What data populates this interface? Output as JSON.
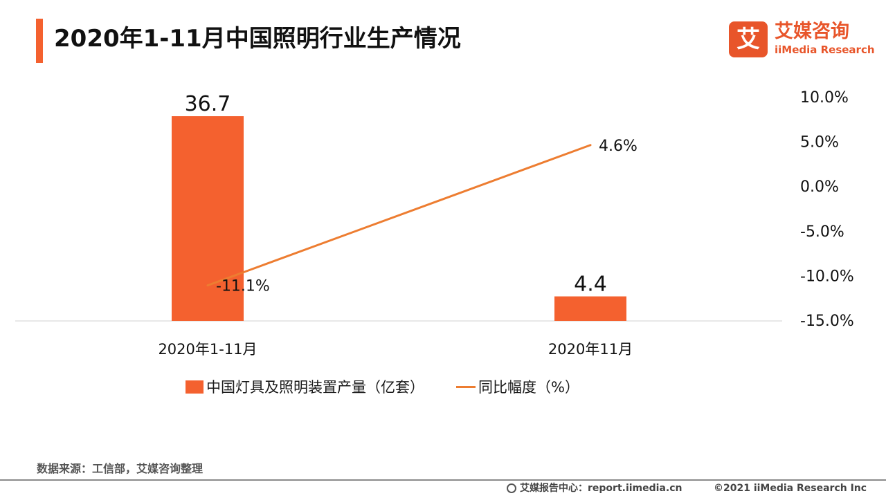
{
  "page": {
    "title": "2020年1-11月中国照明行业生产情况",
    "logo_mark": "艾",
    "logo_cn": "艾媒咨询",
    "logo_en": "iiMedia Research",
    "source": "数据来源：工信部，艾媒咨询整理",
    "footer_report": "艾媒报告中心：report.iimedia.cn",
    "footer_copyright": "©2021  iiMedia Research  Inc"
  },
  "chart_data": {
    "type": "bar+line",
    "categories": [
      "2020年1-11月",
      "2020年11月"
    ],
    "series": [
      {
        "name": "中国灯具及照明装置产量（亿套）",
        "type": "bar",
        "values": [
          36.7,
          4.4
        ],
        "labels": [
          "36.7",
          "4.4"
        ],
        "color": "#f4612f"
      },
      {
        "name": "同比幅度（%）",
        "type": "line",
        "axis": "right",
        "values": [
          -11.1,
          4.6
        ],
        "labels": [
          "-11.1%",
          "4.6%"
        ],
        "color": "#ed7d31"
      }
    ],
    "y_right": {
      "min": -15,
      "max": 10,
      "ticks": [
        10,
        5,
        0,
        -5,
        -10,
        -15
      ],
      "tick_labels": [
        "10.0%",
        "5.0%",
        "0.0%",
        "-5.0%",
        "-10.0%",
        "-15.0%"
      ]
    },
    "y_left_range": [
      0,
      40
    ],
    "grid": false,
    "legend_position": "bottom"
  }
}
